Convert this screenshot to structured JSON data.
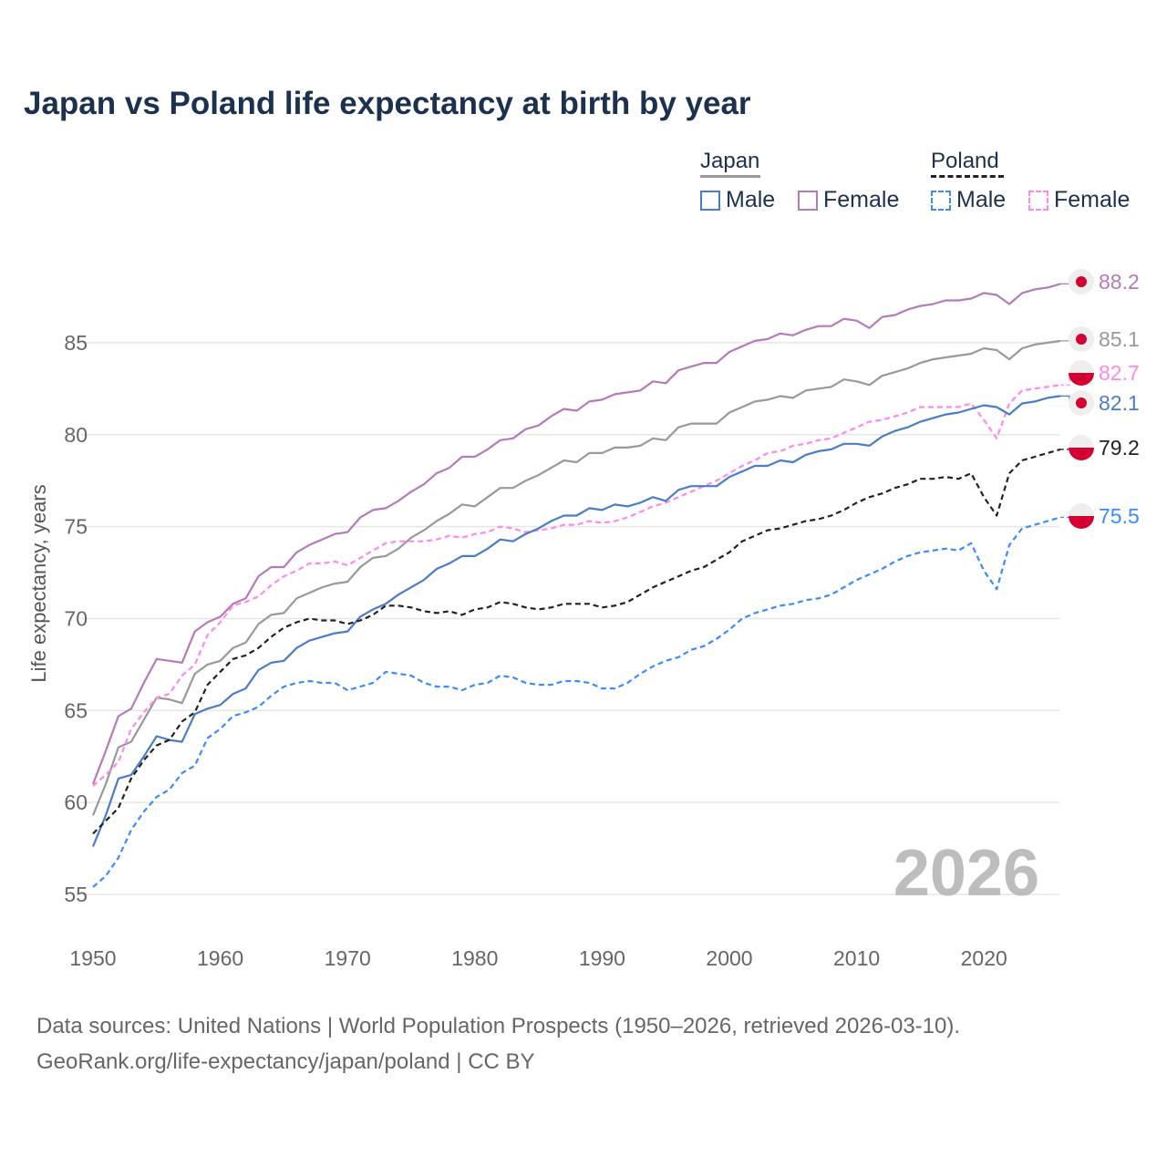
{
  "chart_data": {
    "type": "line",
    "title": "Japan vs Poland life expectancy at birth by year",
    "xlabel": "",
    "ylabel": "Life expectancy, years",
    "xlim": [
      1950,
      2026
    ],
    "ylim": [
      53,
      89
    ],
    "x_ticks": [
      1950,
      1960,
      1970,
      1980,
      1990,
      2000,
      2010,
      2020
    ],
    "y_ticks": [
      55,
      60,
      65,
      70,
      75,
      80,
      85
    ],
    "grid": "horizontal",
    "legend_placement": "top-right",
    "legend": {
      "groups": [
        {
          "name": "Japan",
          "items": [
            "Male",
            "Female"
          ]
        },
        {
          "name": "Poland",
          "items": [
            "Male",
            "Female"
          ]
        }
      ]
    },
    "year_annotation": "2026",
    "x_start": 1950,
    "series": [
      {
        "name": "Japan Female",
        "country": "Japan",
        "sex": "Female",
        "color": "#b57bb8",
        "dash": false,
        "end_label": "88.2",
        "flag": "japan",
        "values": [
          61.0,
          62.8,
          64.7,
          65.1,
          66.5,
          67.8,
          67.7,
          67.6,
          69.3,
          69.8,
          70.1,
          70.8,
          71.1,
          72.3,
          72.8,
          72.8,
          73.6,
          74.0,
          74.3,
          74.6,
          74.7,
          75.5,
          75.9,
          76.0,
          76.4,
          76.9,
          77.3,
          77.9,
          78.2,
          78.8,
          78.8,
          79.2,
          79.7,
          79.8,
          80.3,
          80.5,
          81.0,
          81.4,
          81.3,
          81.8,
          81.9,
          82.2,
          82.3,
          82.4,
          82.9,
          82.8,
          83.5,
          83.7,
          83.9,
          83.9,
          84.5,
          84.8,
          85.1,
          85.2,
          85.5,
          85.4,
          85.7,
          85.9,
          85.9,
          86.3,
          86.2,
          85.8,
          86.4,
          86.5,
          86.8,
          87.0,
          87.1,
          87.3,
          87.3,
          87.4,
          87.7,
          87.6,
          87.1,
          87.7,
          87.9,
          88.0,
          88.2
        ]
      },
      {
        "name": "Japan",
        "country": "Japan",
        "sex": "Both",
        "color": "#999999",
        "dash": false,
        "end_label": "85.1",
        "flag": "japan",
        "values": [
          59.3,
          61.0,
          63.0,
          63.3,
          64.5,
          65.7,
          65.6,
          65.4,
          67.0,
          67.5,
          67.7,
          68.4,
          68.7,
          69.7,
          70.2,
          70.3,
          71.1,
          71.4,
          71.7,
          71.9,
          72.0,
          72.8,
          73.3,
          73.4,
          73.8,
          74.4,
          74.8,
          75.3,
          75.7,
          76.2,
          76.1,
          76.6,
          77.1,
          77.1,
          77.5,
          77.8,
          78.2,
          78.6,
          78.5,
          79.0,
          79.0,
          79.3,
          79.3,
          79.4,
          79.8,
          79.7,
          80.4,
          80.6,
          80.6,
          80.6,
          81.2,
          81.5,
          81.8,
          81.9,
          82.1,
          82.0,
          82.4,
          82.5,
          82.6,
          83.0,
          82.9,
          82.7,
          83.2,
          83.4,
          83.6,
          83.9,
          84.1,
          84.2,
          84.3,
          84.4,
          84.7,
          84.6,
          84.1,
          84.7,
          84.9,
          85.0,
          85.1
        ]
      },
      {
        "name": "Poland Female",
        "country": "Poland",
        "sex": "Female",
        "color": "#ff88ee",
        "dash": true,
        "end_label": "82.7",
        "flag": "poland",
        "values": [
          60.9,
          61.5,
          62.2,
          64.0,
          64.9,
          65.7,
          65.9,
          66.9,
          67.5,
          69.1,
          69.8,
          70.7,
          70.9,
          71.2,
          71.8,
          72.3,
          72.6,
          73.0,
          73.0,
          73.1,
          72.9,
          73.3,
          73.7,
          74.1,
          74.2,
          74.2,
          74.2,
          74.3,
          74.5,
          74.4,
          74.6,
          74.7,
          75.0,
          74.9,
          74.7,
          74.8,
          74.9,
          75.1,
          75.1,
          75.3,
          75.2,
          75.3,
          75.5,
          75.8,
          76.1,
          76.3,
          76.6,
          76.9,
          77.2,
          77.5,
          77.9,
          78.3,
          78.6,
          79.0,
          79.1,
          79.4,
          79.5,
          79.7,
          79.8,
          80.1,
          80.4,
          80.7,
          80.8,
          81.0,
          81.2,
          81.5,
          81.5,
          81.5,
          81.5,
          81.7,
          80.8,
          79.8,
          81.7,
          82.4,
          82.5,
          82.6,
          82.7
        ]
      },
      {
        "name": "Japan Male",
        "country": "Japan",
        "sex": "Male",
        "color": "#4a7cc9",
        "dash": false,
        "end_label": "82.1",
        "flag": "japan",
        "values": [
          57.6,
          59.3,
          61.3,
          61.5,
          62.5,
          63.6,
          63.4,
          63.3,
          64.8,
          65.1,
          65.3,
          65.9,
          66.2,
          67.2,
          67.6,
          67.7,
          68.4,
          68.8,
          69.0,
          69.2,
          69.3,
          70.1,
          70.5,
          70.8,
          71.3,
          71.7,
          72.1,
          72.7,
          73.0,
          73.4,
          73.4,
          73.8,
          74.3,
          74.2,
          74.6,
          74.9,
          75.3,
          75.6,
          75.6,
          76.0,
          75.9,
          76.2,
          76.1,
          76.3,
          76.6,
          76.4,
          77.0,
          77.2,
          77.2,
          77.2,
          77.7,
          78.0,
          78.3,
          78.3,
          78.6,
          78.5,
          78.9,
          79.1,
          79.2,
          79.5,
          79.5,
          79.4,
          79.9,
          80.2,
          80.4,
          80.7,
          80.9,
          81.1,
          81.2,
          81.4,
          81.6,
          81.5,
          81.1,
          81.7,
          81.8,
          82.0,
          82.1
        ]
      },
      {
        "name": "Poland",
        "country": "Poland",
        "sex": "Both",
        "color": "#222222",
        "dash": true,
        "end_label": "79.2",
        "flag": "poland",
        "values": [
          58.3,
          59.0,
          59.7,
          61.3,
          62.3,
          63.1,
          63.4,
          64.4,
          64.9,
          66.4,
          67.1,
          67.8,
          68.0,
          68.4,
          69.0,
          69.5,
          69.8,
          70.0,
          69.9,
          69.9,
          69.7,
          69.9,
          70.2,
          70.7,
          70.7,
          70.6,
          70.4,
          70.3,
          70.4,
          70.2,
          70.5,
          70.6,
          70.9,
          70.8,
          70.6,
          70.5,
          70.6,
          70.8,
          70.8,
          70.8,
          70.6,
          70.7,
          70.9,
          71.3,
          71.7,
          72.0,
          72.3,
          72.6,
          72.8,
          73.2,
          73.6,
          74.2,
          74.5,
          74.8,
          74.9,
          75.1,
          75.3,
          75.4,
          75.6,
          75.9,
          76.3,
          76.6,
          76.8,
          77.1,
          77.3,
          77.6,
          77.6,
          77.7,
          77.6,
          77.9,
          76.6,
          75.6,
          77.9,
          78.6,
          78.8,
          79.0,
          79.2
        ]
      },
      {
        "name": "Poland Male",
        "country": "Poland",
        "sex": "Male",
        "color": "#3b8bff",
        "dash": true,
        "end_label": "75.5",
        "flag": "poland",
        "values": [
          55.4,
          56.0,
          57.0,
          58.5,
          59.5,
          60.3,
          60.7,
          61.6,
          62.0,
          63.5,
          64.0,
          64.7,
          64.9,
          65.2,
          65.8,
          66.3,
          66.5,
          66.6,
          66.5,
          66.5,
          66.1,
          66.3,
          66.5,
          67.1,
          67.0,
          66.9,
          66.5,
          66.3,
          66.3,
          66.1,
          66.4,
          66.5,
          66.9,
          66.8,
          66.5,
          66.4,
          66.4,
          66.6,
          66.6,
          66.5,
          66.2,
          66.2,
          66.5,
          67.0,
          67.4,
          67.7,
          67.9,
          68.3,
          68.5,
          68.9,
          69.4,
          70.0,
          70.3,
          70.5,
          70.7,
          70.8,
          71.0,
          71.1,
          71.3,
          71.7,
          72.1,
          72.4,
          72.7,
          73.1,
          73.4,
          73.6,
          73.7,
          73.8,
          73.7,
          74.1,
          72.6,
          71.6,
          74.0,
          74.9,
          75.1,
          75.3,
          75.5
        ]
      }
    ]
  },
  "legend_labels": {
    "japan": "Japan",
    "poland": "Poland",
    "japan_male": "Male",
    "japan_female": "Female",
    "poland_male": "Male",
    "poland_female": "Female"
  },
  "footer": {
    "line1": "Data sources: United Nations | World Population Prospects (1950–2026, retrieved 2026-03-10).",
    "line2": "GeoRank.org/life-expectancy/japan/poland | CC BY"
  }
}
